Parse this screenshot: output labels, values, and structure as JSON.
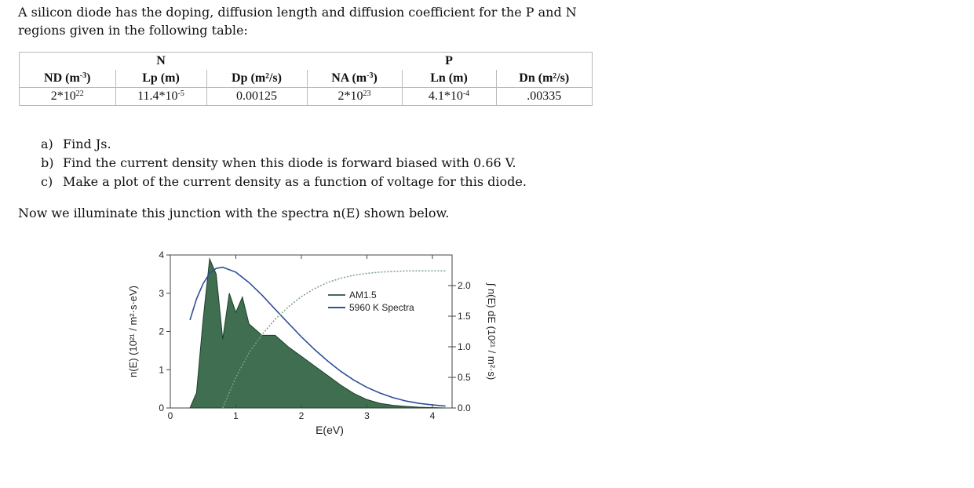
{
  "intro": "A silicon diode has the doping, diffusion length and diffusion coefficient for the P and N regions given in the following table:",
  "table": {
    "group_n": "N",
    "group_p": "P",
    "headers": [
      {
        "main": "ND (m",
        "sup": "-3",
        "tail": ")"
      },
      {
        "main": "Lp (m)",
        "sup": "",
        "tail": ""
      },
      {
        "main": "Dp (m²/s)",
        "sup": "",
        "tail": ""
      },
      {
        "main": "NA (m",
        "sup": "-3",
        "tail": ")"
      },
      {
        "main": "Ln (m)",
        "sup": "",
        "tail": ""
      },
      {
        "main": "Dn (m²/s)",
        "sup": "",
        "tail": ""
      }
    ],
    "values": [
      {
        "main": "2*10",
        "sup": "22"
      },
      {
        "main": "11.4*10",
        "sup": "-5"
      },
      {
        "main": "0.00125",
        "sup": ""
      },
      {
        "main": "2*10",
        "sup": "23"
      },
      {
        "main": "4.1*10",
        "sup": "-4"
      },
      {
        "main": ".00335",
        "sup": ""
      }
    ]
  },
  "questions": [
    {
      "marker": "a)",
      "text": "Find Js."
    },
    {
      "marker": "b)",
      "text": "Find the current density when this diode is forward biased with 0.66 V."
    },
    {
      "marker": "c)",
      "text": "Make a plot of the current density as a function of voltage for this diode."
    }
  ],
  "illumination_text": "Now we illuminate this junction with the spectra n(E) shown below.",
  "chart_data": {
    "type": "area",
    "xlabel": "E(eV)",
    "ylabel_left": "n(E) (10²¹ / m²·s·eV)",
    "ylabel_right": "∫ n(E) dE (10²¹ / m²·s)",
    "x_ticks": [
      "0",
      "1",
      "2",
      "3",
      "4"
    ],
    "y_left_ticks": [
      "0",
      "1",
      "2",
      "3",
      "4"
    ],
    "y_right_ticks": [
      "0.0",
      "0.5",
      "1.0",
      "1.5",
      "2.0"
    ],
    "xlim": [
      0,
      4.3
    ],
    "ylim_left": [
      0,
      4
    ],
    "ylim_right": [
      0,
      2.5
    ],
    "legend": [
      "AM1.5",
      "5960 K Spectra"
    ],
    "legend_position": "right, mid-height",
    "colors": {
      "am15_fill": "#3f6e50",
      "blackbody": "#2f4f9a",
      "integral": "#7e9e84"
    },
    "series": [
      {
        "name": "AM1.5",
        "x": [
          0.3,
          0.4,
          0.5,
          0.6,
          0.7,
          0.8,
          0.9,
          1.0,
          1.1,
          1.2,
          1.4,
          1.6,
          1.8,
          2.0,
          2.2,
          2.4,
          2.6,
          2.8,
          3.0,
          3.2,
          3.4,
          3.6,
          3.8,
          4.0,
          4.2
        ],
        "values": [
          0.0,
          0.4,
          2.3,
          3.9,
          3.5,
          1.8,
          3.0,
          2.5,
          2.9,
          2.2,
          1.9,
          1.9,
          1.6,
          1.35,
          1.1,
          0.85,
          0.6,
          0.38,
          0.22,
          0.12,
          0.07,
          0.04,
          0.02,
          0.01,
          0.0
        ]
      },
      {
        "name": "5960 K Spectra",
        "x": [
          0.3,
          0.4,
          0.5,
          0.6,
          0.7,
          0.8,
          1.0,
          1.2,
          1.4,
          1.6,
          1.8,
          2.0,
          2.2,
          2.4,
          2.6,
          2.8,
          3.0,
          3.2,
          3.4,
          3.6,
          3.8,
          4.0,
          4.2
        ],
        "values": [
          2.3,
          2.85,
          3.25,
          3.52,
          3.65,
          3.68,
          3.55,
          3.28,
          2.95,
          2.58,
          2.22,
          1.86,
          1.53,
          1.23,
          0.96,
          0.73,
          0.54,
          0.39,
          0.27,
          0.18,
          0.12,
          0.08,
          0.05
        ]
      },
      {
        "name": "integral",
        "axis": "right",
        "x": [
          0.8,
          1.0,
          1.2,
          1.4,
          1.6,
          1.8,
          2.0,
          2.2,
          2.4,
          2.6,
          2.8,
          3.0,
          3.2,
          3.4,
          3.6,
          3.8,
          4.0,
          4.2
        ],
        "values": [
          0.0,
          0.5,
          0.9,
          1.2,
          1.45,
          1.65,
          1.82,
          1.95,
          2.05,
          2.12,
          2.17,
          2.2,
          2.22,
          2.23,
          2.24,
          2.24,
          2.24,
          2.24
        ]
      }
    ]
  }
}
